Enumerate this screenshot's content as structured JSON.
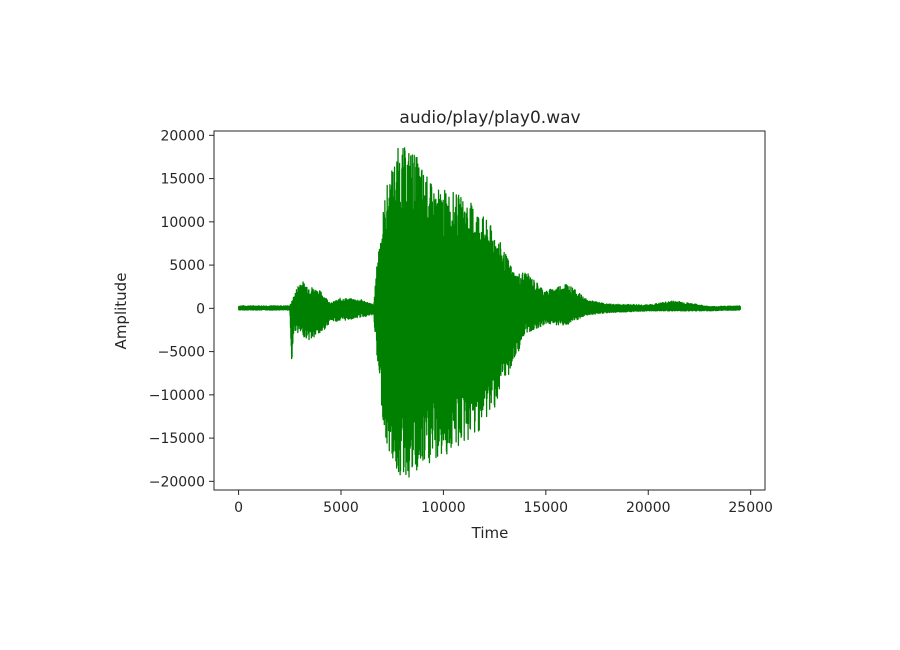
{
  "chart_data": {
    "type": "line",
    "title": "audio/play/play0.wav",
    "xlabel": "Time",
    "ylabel": "Amplitude",
    "xlim": [
      -1200,
      25700
    ],
    "ylim": [
      -21000,
      20500
    ],
    "xticks": [
      0,
      5000,
      10000,
      15000,
      20000,
      25000
    ],
    "yticks": [
      20000,
      15000,
      10000,
      5000,
      0,
      -5000,
      -10000,
      -15000,
      -20000
    ],
    "grid": false,
    "legend": "none",
    "series": [
      {
        "color": "#008000",
        "envelope": [
          [
            0,
            300,
            -200
          ],
          [
            2500,
            300,
            -200
          ],
          [
            2600,
            800,
            -7300
          ],
          [
            2700,
            1500,
            -2500
          ],
          [
            3000,
            3300,
            -3000
          ],
          [
            3500,
            2600,
            -3800
          ],
          [
            4000,
            2000,
            -3000
          ],
          [
            4500,
            600,
            -1500
          ],
          [
            5000,
            1200,
            -1500
          ],
          [
            6000,
            1000,
            -1000
          ],
          [
            6600,
            400,
            -800
          ],
          [
            6800,
            6500,
            -7500
          ],
          [
            7200,
            14000,
            -16000
          ],
          [
            7800,
            18700,
            -19500
          ],
          [
            8500,
            18500,
            -20000
          ],
          [
            9500,
            14000,
            -18000
          ],
          [
            10500,
            13500,
            -16500
          ],
          [
            11500,
            12000,
            -15000
          ],
          [
            12500,
            9000,
            -11500
          ],
          [
            13500,
            4000,
            -6000
          ],
          [
            14000,
            4300,
            -3000
          ],
          [
            15000,
            2000,
            -1800
          ],
          [
            16000,
            3000,
            -2000
          ],
          [
            17000,
            1000,
            -800
          ],
          [
            18000,
            500,
            -500
          ],
          [
            20000,
            400,
            -300
          ],
          [
            21300,
            900,
            -300
          ],
          [
            23000,
            200,
            -300
          ],
          [
            24500,
            300,
            -200
          ]
        ]
      }
    ]
  }
}
